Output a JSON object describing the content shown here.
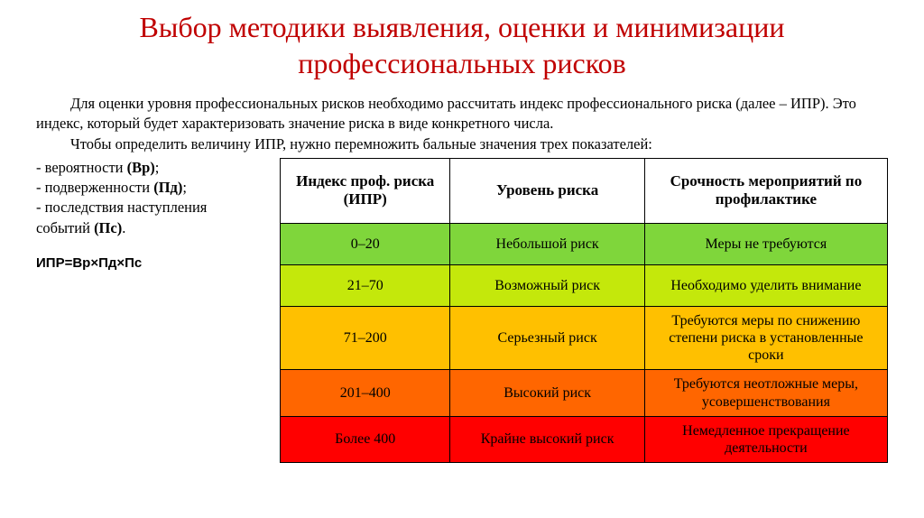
{
  "title": "Выбор методики выявления, оценки и минимизации профессиональных рисков",
  "intro": {
    "p1": "Для оценки уровня профессиональных рисков необходимо рассчитать индекс профессионального риска (далее – ИПР). Это индекс, который будет характеризовать значение риска в виде конкретного числа.",
    "p2": "Чтобы определить величину ИПР, нужно перемножить бальные значения трех показателей:"
  },
  "factors": {
    "f1_label": "- вероятности ",
    "f1_code": "(Вр)",
    "f2_label": "- подверженности ",
    "f2_code": "(Пд)",
    "f3_label": "- последствия наступления событий ",
    "f3_code": "(Пс)"
  },
  "formula": "ИПР=Вр×Пд×Пс",
  "table": {
    "headers": {
      "h1": "Индекс проф. риска (ИПР)",
      "h2": "Уровень риска",
      "h3": "Срочность мероприятий по профилактике"
    },
    "rows": [
      {
        "ipr": "0–20",
        "level": "Небольшой риск",
        "action": "Меры не требуются",
        "bg": "#7fd63b"
      },
      {
        "ipr": "21–70",
        "level": "Возможный риск",
        "action": "Необходимо уделить внимание",
        "bg": "#c4e80b"
      },
      {
        "ipr": "71–200",
        "level": "Серьезный риск",
        "action": "Требуются меры по снижению степени риска в установленные сроки",
        "bg": "#ffc000"
      },
      {
        "ipr": "201–400",
        "level": "Высокий риск",
        "action": "Требуются неотложные меры, усовершенствования",
        "bg": "#ff6600"
      },
      {
        "ipr": "Более 400",
        "level": "Крайне высокий риск",
        "action": "Немедленное прекращение деятельности",
        "bg": "#ff0000"
      }
    ]
  }
}
